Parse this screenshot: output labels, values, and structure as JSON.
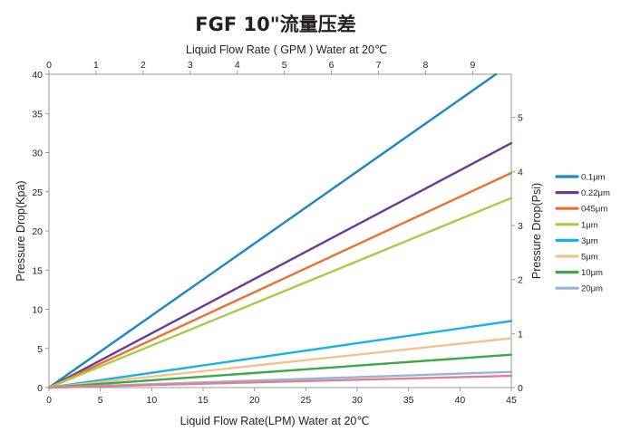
{
  "chart_data": {
    "type": "line",
    "title": "FGF 10\"流量压差",
    "xlabel": "Liquid Flow Rate(LPM) Water  at  20℃",
    "x2label": "Liquid Flow Rate ( GPM ) Water  at  20℃",
    "ylabel": "Pressure Drop(Kpa)",
    "y2label": "Pressure Drop(Psi)",
    "xlim": [
      0,
      45
    ],
    "ylim": [
      0,
      40
    ],
    "x2lim": [
      0,
      9.82
    ],
    "y2lim": [
      0,
      5.8
    ],
    "xticks": [
      "0",
      "5",
      "10",
      "15",
      "20",
      "25",
      "30",
      "35",
      "40",
      "45"
    ],
    "yticks": [
      "0",
      "5",
      "10",
      "15",
      "20",
      "25",
      "30",
      "35",
      "40"
    ],
    "x2ticks": [
      "0",
      "1",
      "2",
      "3",
      "4",
      "5",
      "6",
      "7",
      "8",
      "9"
    ],
    "y2ticks": [
      "0",
      "1",
      "2",
      "3",
      "4",
      "5"
    ],
    "legend_position": "right",
    "series": [
      {
        "name": "0.1μm",
        "color": "#1a86c3",
        "x": [
          0,
          43.5
        ],
        "y": [
          0,
          40.0
        ]
      },
      {
        "name": "0.22μm",
        "color": "#6b3a96",
        "x": [
          0,
          45
        ],
        "y": [
          0,
          31.2
        ]
      },
      {
        "name": "045μm",
        "color": "#ee6f2d",
        "x": [
          0,
          45
        ],
        "y": [
          0,
          27.4
        ]
      },
      {
        "name": "1μm",
        "color": "#a6cb45",
        "x": [
          0,
          45
        ],
        "y": [
          0,
          24.2
        ]
      },
      {
        "name": "3μm",
        "color": "#17b2e6",
        "x": [
          0,
          45
        ],
        "y": [
          0,
          8.5
        ]
      },
      {
        "name": "5μm",
        "color": "#f5c28c",
        "x": [
          0,
          45
        ],
        "y": [
          0,
          6.3
        ]
      },
      {
        "name": "10μm",
        "color": "#3aaa45",
        "x": [
          0,
          45
        ],
        "y": [
          0,
          4.2
        ]
      },
      {
        "name": "20μm",
        "color": "#97b3d9",
        "x": [
          0,
          45
        ],
        "y": [
          0,
          2.0
        ]
      },
      {
        "color": "#e27f8e",
        "x": [
          0,
          45
        ],
        "y": [
          0,
          1.5
        ]
      }
    ]
  }
}
